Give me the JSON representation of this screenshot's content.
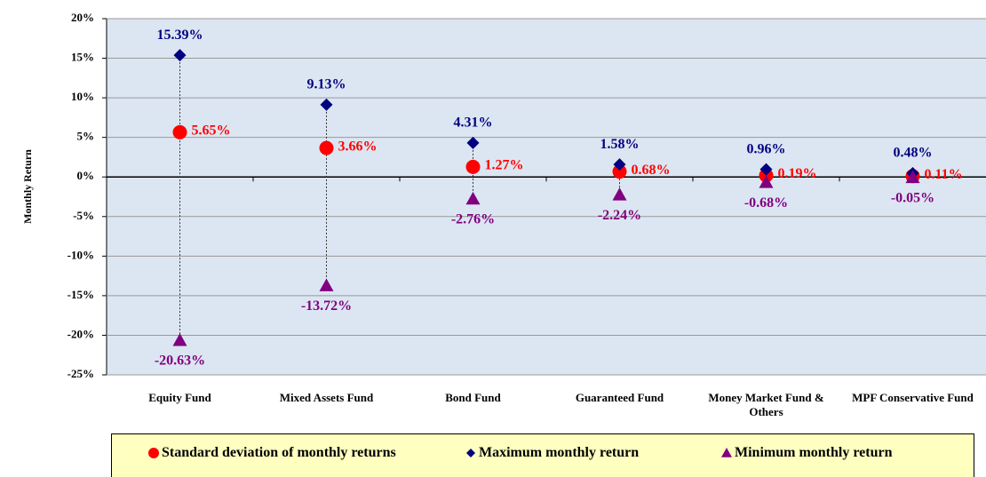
{
  "chart_data": {
    "type": "dot",
    "y_label": "Monthly Return",
    "categories": [
      "Equity Fund",
      "Mixed Assets Fund",
      "Bond Fund",
      "Guaranteed Fund",
      "Money Market Fund & Others",
      "MPF Conservative Fund"
    ],
    "series": [
      {
        "name": "Standard deviation of monthly returns",
        "color": "#ff0000",
        "marker": "circle",
        "values": [
          5.65,
          3.66,
          1.27,
          0.68,
          0.19,
          0.11
        ],
        "value_labels": [
          "5.65%",
          "3.66%",
          "1.27%",
          "0.68%",
          "0.19%",
          "0.11%"
        ]
      },
      {
        "name": "Maximum monthly return",
        "color": "#000080",
        "marker": "diamond",
        "values": [
          15.39,
          9.13,
          4.31,
          1.58,
          0.96,
          0.48
        ],
        "value_labels": [
          "15.39%",
          "9.13%",
          "4.31%",
          "1.58%",
          "0.96%",
          "0.48%"
        ]
      },
      {
        "name": "Minimum monthly return",
        "color": "#800080",
        "marker": "triangle",
        "values": [
          -20.63,
          -13.72,
          -2.76,
          -2.24,
          -0.68,
          -0.05
        ],
        "value_labels": [
          "-20.63%",
          "-13.72%",
          "-2.76%",
          "-2.24%",
          "-0.68%",
          "-0.05%"
        ]
      }
    ],
    "ylim": [
      -25,
      20
    ],
    "yticks": [
      {
        "value": -25,
        "label": "-25%"
      },
      {
        "value": -20,
        "label": "-20%"
      },
      {
        "value": -15,
        "label": "-15%"
      },
      {
        "value": -10,
        "label": "-10%"
      },
      {
        "value": -5,
        "label": "-5%"
      },
      {
        "value": 0,
        "label": "0%"
      },
      {
        "value": 5,
        "label": "5%"
      },
      {
        "value": 10,
        "label": "10%"
      },
      {
        "value": 15,
        "label": "15%"
      },
      {
        "value": 20,
        "label": "20%"
      }
    ],
    "grid": true,
    "background": "#dce6f2"
  }
}
